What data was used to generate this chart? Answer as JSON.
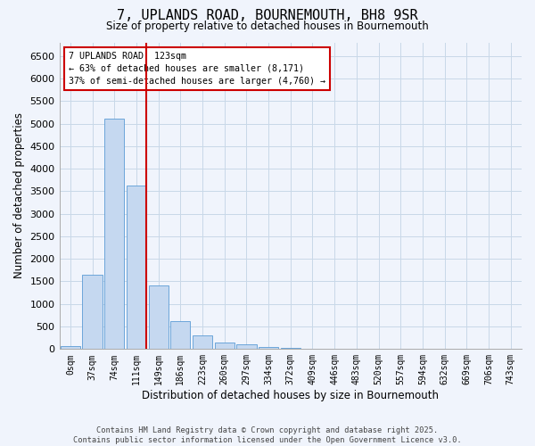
{
  "title_line1": "7, UPLANDS ROAD, BOURNEMOUTH, BH8 9SR",
  "title_line2": "Size of property relative to detached houses in Bournemouth",
  "xlabel": "Distribution of detached houses by size in Bournemouth",
  "ylabel": "Number of detached properties",
  "bar_color": "#c5d8f0",
  "bar_edge_color": "#5b9bd5",
  "annotation_title": "7 UPLANDS ROAD: 123sqm",
  "annotation_line2": "← 63% of detached houses are smaller (8,171)",
  "annotation_line3": "37% of semi-detached houses are larger (4,760) →",
  "vline_color": "#cc0000",
  "annotation_box_edge": "#cc0000",
  "categories": [
    "0sqm",
    "37sqm",
    "74sqm",
    "111sqm",
    "149sqm",
    "186sqm",
    "223sqm",
    "260sqm",
    "297sqm",
    "334sqm",
    "372sqm",
    "409sqm",
    "446sqm",
    "483sqm",
    "520sqm",
    "557sqm",
    "594sqm",
    "632sqm",
    "669sqm",
    "706sqm",
    "743sqm"
  ],
  "values": [
    75,
    1650,
    5100,
    3630,
    1420,
    620,
    310,
    145,
    100,
    55,
    35,
    15,
    0,
    0,
    0,
    0,
    0,
    0,
    0,
    0,
    0
  ],
  "ylim": [
    0,
    6800
  ],
  "yticks": [
    0,
    500,
    1000,
    1500,
    2000,
    2500,
    3000,
    3500,
    4000,
    4500,
    5000,
    5500,
    6000,
    6500
  ],
  "footer_line1": "Contains HM Land Registry data © Crown copyright and database right 2025.",
  "footer_line2": "Contains public sector information licensed under the Open Government Licence v3.0.",
  "background_color": "#f0f4fc",
  "grid_color": "#c8d8e8",
  "vline_index": 3
}
